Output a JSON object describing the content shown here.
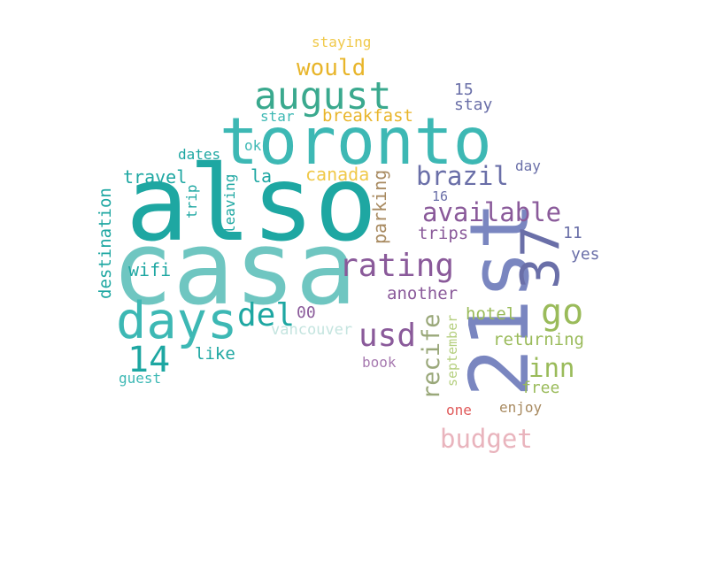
{
  "words": {
    "also": "also",
    "casa": "casa",
    "toronto": "toronto",
    "august": "august",
    "days": "days",
    "21st": "21st",
    "37": "37",
    "rating": "rating",
    "available": "available",
    "brazil": "brazil",
    "go": "go",
    "usd": "usd",
    "del": "del",
    "14": "14",
    "would": "would",
    "recife": "recife",
    "budget": "budget",
    "inn": "inn",
    "breakfast": "breakfast",
    "staying": "staying",
    "15": "15",
    "stay": "stay",
    "star": "star",
    "ok": "ok",
    "dates": "dates",
    "travel": "travel",
    "la": "la",
    "canada": "canada",
    "day": "day",
    "16": "16",
    "trips": "trips",
    "11": "11",
    "yes": "yes",
    "parking": "parking",
    "leaving": "leaving",
    "trip": "trip",
    "destination": "destination",
    "wifi": "wifi",
    "another": "another",
    "00": "00",
    "vancouver": "vancouver",
    "hotel": "hotel",
    "returning": "returning",
    "like": "like",
    "september": "september",
    "book": "book",
    "free": "free",
    "guest": "guest",
    "one": "one",
    "enjoy": "enjoy"
  },
  "colors": {
    "teal_dark": "#1ea7a2",
    "teal_light": "#6fc6c1",
    "teal_mid": "#3db8b4",
    "green_teal": "#3aa98e",
    "periwinkle": "#7a86c0",
    "slate_blue": "#6a6fa8",
    "purple": "#8a5a9a",
    "olive_green": "#9abb5a",
    "gold": "#e8b52a",
    "tan": "#a88a60",
    "pink": "#e9b4bd",
    "mint": "#c4e4df",
    "coral": "#e05a5a"
  }
}
